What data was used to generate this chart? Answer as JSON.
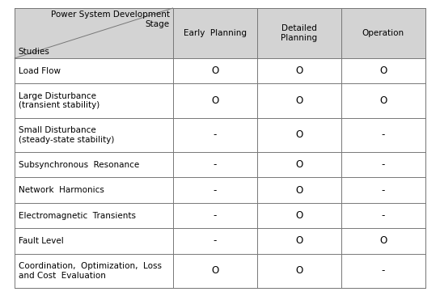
{
  "header_top_right": "Power System Development\nStage",
  "header_bottom_left": "Studies",
  "col_headers": [
    "Early  Planning",
    "Detailed\nPlanning",
    "Operation"
  ],
  "rows": [
    {
      "label": "Load Flow",
      "values": [
        "O",
        "O",
        "O"
      ]
    },
    {
      "label": "Large Disturbance\n(transient stability)",
      "values": [
        "O",
        "O",
        "O"
      ]
    },
    {
      "label": "Small Disturbance\n(steady-state stability)",
      "values": [
        "-",
        "O",
        "-"
      ]
    },
    {
      "label": "Subsynchronous  Resonance",
      "values": [
        "-",
        "O",
        "-"
      ]
    },
    {
      "label": "Network  Harmonics",
      "values": [
        "-",
        "O",
        "-"
      ]
    },
    {
      "label": "Electromagnetic  Transients",
      "values": [
        "-",
        "O",
        "-"
      ]
    },
    {
      "label": "Fault Level",
      "values": [
        "-",
        "O",
        "O"
      ]
    },
    {
      "label": "Coordination,  Optimization,  Loss\nand Cost  Evaluation",
      "values": [
        "O",
        "O",
        "-"
      ]
    }
  ],
  "header_bg": "#d3d3d3",
  "body_bg": "#ffffff",
  "border_color": "#777777",
  "text_color": "#000000",
  "font_size": 7.5,
  "header_font_size": 7.5
}
